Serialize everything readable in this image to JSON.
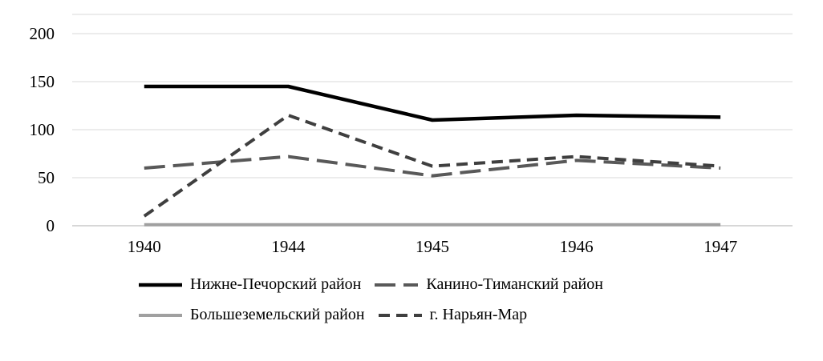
{
  "chart_data": {
    "type": "line",
    "title": "",
    "xlabel": "",
    "ylabel": "",
    "categories": [
      "1940",
      "1944",
      "1945",
      "1946",
      "1947"
    ],
    "y_ticks": [
      0,
      50,
      100,
      150,
      200
    ],
    "ylim": [
      0,
      200
    ],
    "grid": true,
    "legend_position": "bottom",
    "grid_color": "#d9d9d9",
    "axis_color": "#bfbfbf",
    "series": [
      {
        "name": "Нижне-Печорский район",
        "values": [
          145,
          145,
          110,
          115,
          113
        ],
        "color": "#000000",
        "dash": "none",
        "width": 4.5
      },
      {
        "name": "Канино-Тиманский район",
        "values": [
          60,
          72,
          52,
          68,
          60
        ],
        "color": "#595959",
        "dash": "26 10",
        "width": 4
      },
      {
        "name": "Большеземельский район",
        "values": [
          1,
          1,
          1,
          1,
          1
        ],
        "color": "#a0a0a0",
        "dash": "none",
        "width": 4
      },
      {
        "name": "г. Нарьян-Мар",
        "values": [
          10,
          115,
          62,
          72,
          62
        ],
        "color": "#3f3f3f",
        "dash": "14 8",
        "width": 4
      }
    ]
  }
}
